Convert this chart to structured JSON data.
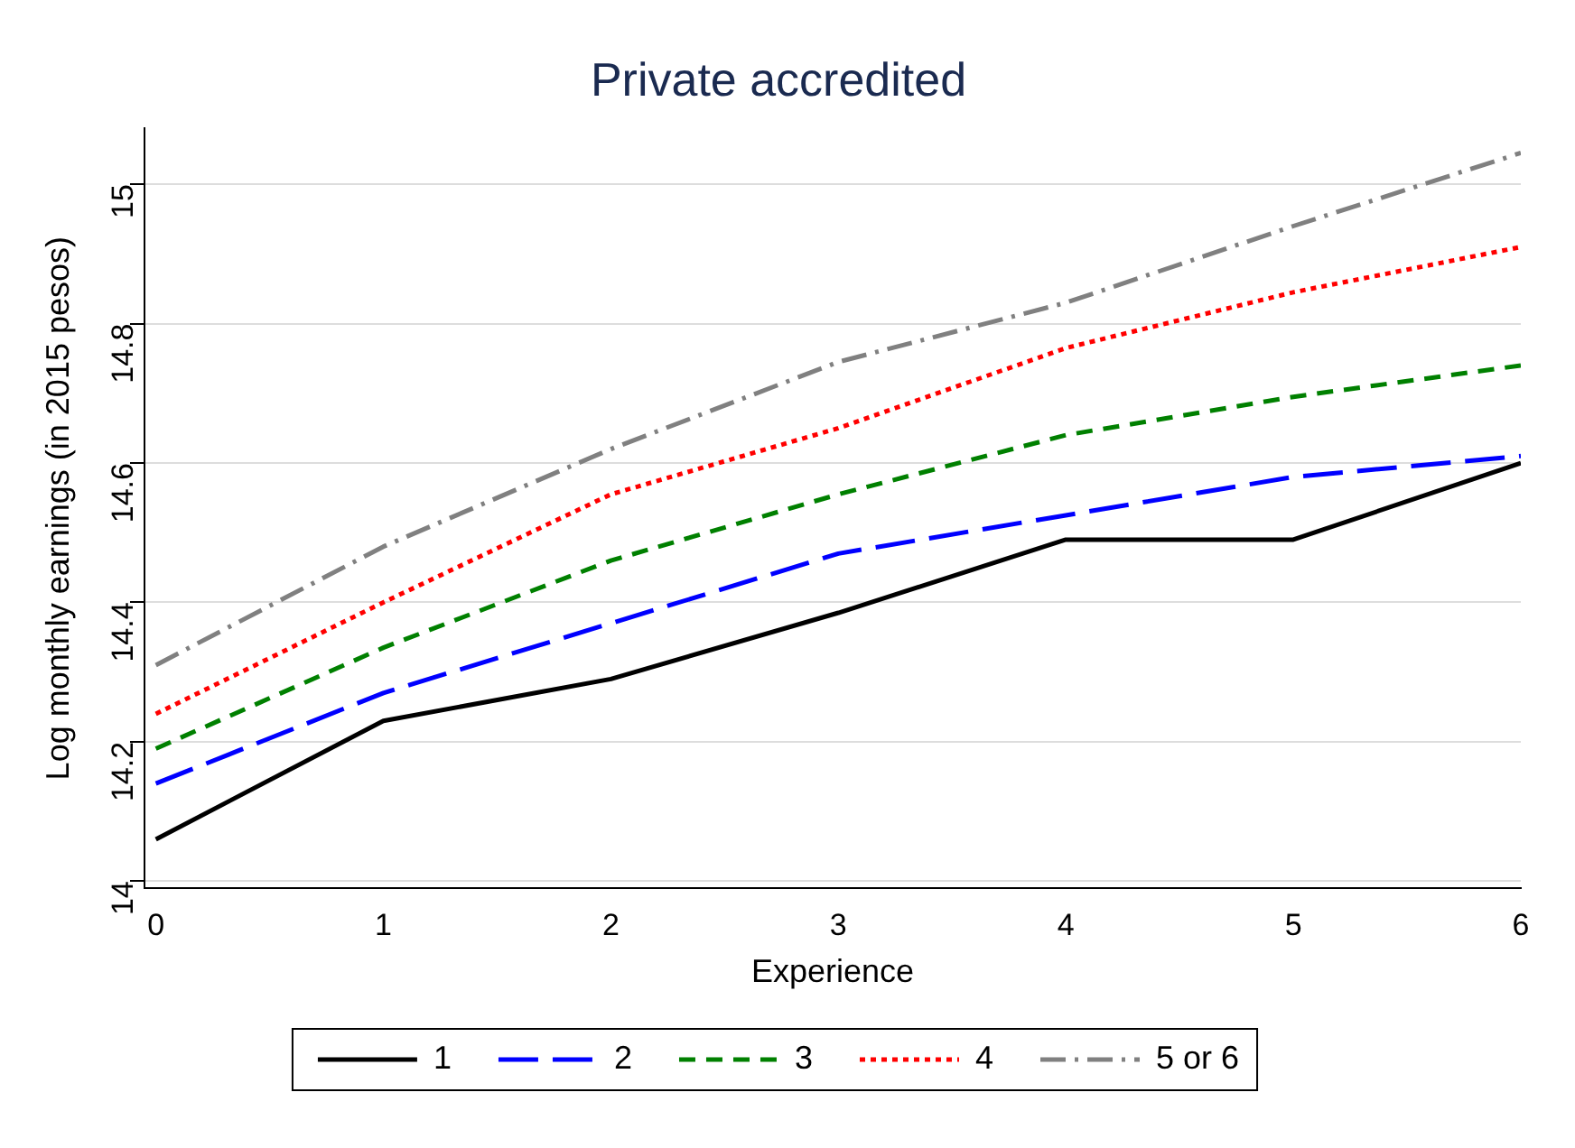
{
  "chart_data": {
    "type": "line",
    "title": "Private accredited",
    "xlabel": "Experience",
    "ylabel": "Log monthly earnings (in 2015 pesos)",
    "x": [
      0,
      1,
      2,
      3,
      4,
      5,
      6
    ],
    "xlim": [
      -0.05,
      6
    ],
    "xticks": [
      0,
      1,
      2,
      3,
      4,
      5,
      6
    ],
    "ylim": [
      13.99,
      15.08
    ],
    "yticks": [
      14,
      14.2,
      14.4,
      14.6,
      14.8,
      15
    ],
    "grid": "y",
    "legend": "bottom",
    "marker": "none",
    "series": [
      {
        "name": "1",
        "color": "#000000",
        "line_style": "solid",
        "values": [
          14.06,
          14.23,
          14.29,
          14.385,
          14.49,
          14.49,
          14.6
        ]
      },
      {
        "name": "2",
        "color": "#0000ff",
        "line_style": "longdash",
        "values": [
          14.14,
          14.27,
          14.37,
          14.47,
          14.525,
          14.58,
          14.61
        ]
      },
      {
        "name": "3",
        "color": "#008000",
        "line_style": "dashed",
        "values": [
          14.19,
          14.335,
          14.46,
          14.555,
          14.64,
          14.695,
          14.74
        ]
      },
      {
        "name": "4",
        "color": "#ff0000",
        "line_style": "dotted",
        "values": [
          14.24,
          14.4,
          14.555,
          14.65,
          14.765,
          14.845,
          14.91
        ]
      },
      {
        "name": "5 or 6",
        "color": "#808080",
        "line_style": "dashdot",
        "values": [
          14.31,
          14.48,
          14.62,
          14.745,
          14.83,
          14.94,
          15.045
        ]
      }
    ]
  }
}
